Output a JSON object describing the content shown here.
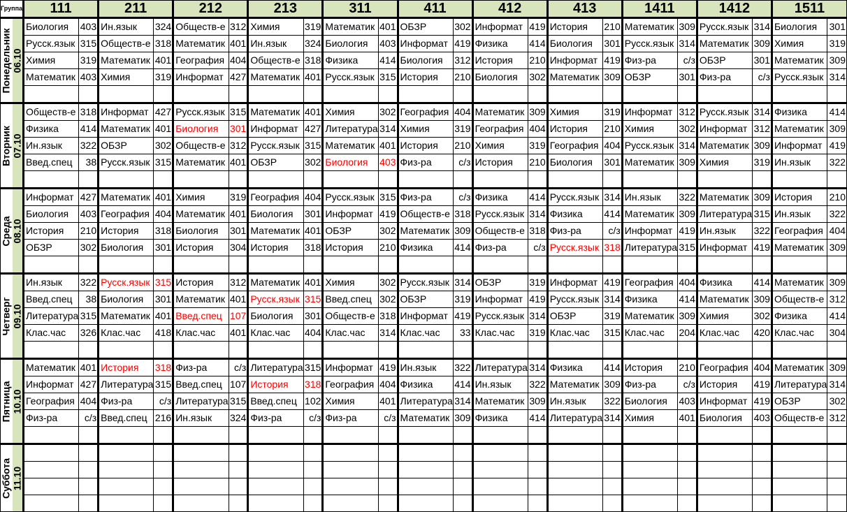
{
  "header": {
    "corner_label": "Группа",
    "groups": [
      "111",
      "211",
      "212",
      "213",
      "311",
      "411",
      "412",
      "413",
      "1411",
      "1412",
      "1511"
    ]
  },
  "colors": {
    "header_bg": "#d8e4bc",
    "highlight_text": "#ff0000"
  },
  "days": [
    {
      "name": "Понедельник",
      "date": "06.10",
      "rows": [
        [
          [
            "Биология",
            "403"
          ],
          [
            "Ин.язык",
            "324"
          ],
          [
            "Обществ-е",
            "312"
          ],
          [
            "Химия",
            "319"
          ],
          [
            "Математик",
            "401"
          ],
          [
            "ОБЗР",
            "302"
          ],
          [
            "Информат",
            "419"
          ],
          [
            "История",
            "210"
          ],
          [
            "Математик",
            "309"
          ],
          [
            "Русск.язык",
            "314"
          ],
          [
            "Биология",
            "301"
          ]
        ],
        [
          [
            "Русск.язык",
            "315"
          ],
          [
            "Обществ-е",
            "318"
          ],
          [
            "Математик",
            "401"
          ],
          [
            "Ин.язык",
            "324"
          ],
          [
            "Биология",
            "403"
          ],
          [
            "Информат",
            "419"
          ],
          [
            "Физика",
            "414"
          ],
          [
            "Биология",
            "301"
          ],
          [
            "Русск.язык",
            "314"
          ],
          [
            "Математик",
            "309"
          ],
          [
            "Химия",
            "319"
          ]
        ],
        [
          [
            "Химия",
            "319"
          ],
          [
            "Математик",
            "401"
          ],
          [
            "География",
            "404"
          ],
          [
            "Обществ-е",
            "318"
          ],
          [
            "Физика",
            "414"
          ],
          [
            "Биология",
            "312"
          ],
          [
            "История",
            "210"
          ],
          [
            "Информат",
            "419"
          ],
          [
            "Физ-ра",
            "с/з"
          ],
          [
            "ОБЗР",
            "301"
          ],
          [
            "Математик",
            "309"
          ]
        ],
        [
          [
            "Математик",
            "403"
          ],
          [
            "Химия",
            "319"
          ],
          [
            "Информат",
            "427"
          ],
          [
            "Математик",
            "401"
          ],
          [
            "Русск.язык",
            "315"
          ],
          [
            "История",
            "210"
          ],
          [
            "Биология",
            "302"
          ],
          [
            "Математик",
            "309"
          ],
          [
            "ОБЗР",
            "301"
          ],
          [
            "Физ-ра",
            "с/з"
          ],
          [
            "Русск.язык",
            "314"
          ]
        ]
      ]
    },
    {
      "name": "Вторник",
      "date": "07.10",
      "rows": [
        [
          [
            "Обществ-е",
            "318"
          ],
          [
            "Информат",
            "427"
          ],
          [
            "Русск.язык",
            "315"
          ],
          [
            "Математик",
            "401"
          ],
          [
            "Химия",
            "302"
          ],
          [
            "География",
            "404"
          ],
          [
            "Математик",
            "309"
          ],
          [
            "Химия",
            "319"
          ],
          [
            "Информат",
            "312"
          ],
          [
            "Русск.язык",
            "314"
          ],
          [
            "Физика",
            "414"
          ]
        ],
        [
          [
            "Физика",
            "414"
          ],
          [
            "Математик",
            "401"
          ],
          [
            "Биология",
            "301",
            true
          ],
          [
            "Информат",
            "427"
          ],
          [
            "Литература",
            "314"
          ],
          [
            "Химия",
            "319"
          ],
          [
            "География",
            "404"
          ],
          [
            "История",
            "210"
          ],
          [
            "Химия",
            "302"
          ],
          [
            "Информат",
            "312"
          ],
          [
            "Математик",
            "309"
          ]
        ],
        [
          [
            "Ин.язык",
            "322"
          ],
          [
            "ОБЗР",
            "302"
          ],
          [
            "Обществ-е",
            "312"
          ],
          [
            "Русск.язык",
            "315"
          ],
          [
            "Математик",
            "401"
          ],
          [
            "История",
            "210"
          ],
          [
            "Химия",
            "319"
          ],
          [
            "География",
            "404"
          ],
          [
            "Русск.язык",
            "314"
          ],
          [
            "Математик",
            "309"
          ],
          [
            "Информат",
            "419"
          ]
        ],
        [
          [
            "Введ.спец",
            "38"
          ],
          [
            "Русск.язык",
            "315"
          ],
          [
            "Математик",
            "401"
          ],
          [
            "ОБЗР",
            "302"
          ],
          [
            "Биология",
            "403",
            true
          ],
          [
            "Физ-ра",
            "с/з"
          ],
          [
            "История",
            "210"
          ],
          [
            "Биология",
            "301"
          ],
          [
            "Математик",
            "309"
          ],
          [
            "Химия",
            "319"
          ],
          [
            "Ин.язык",
            "322"
          ]
        ]
      ]
    },
    {
      "name": "Среда",
      "date": "08.10",
      "rows": [
        [
          [
            "Информат",
            "427"
          ],
          [
            "Математик",
            "401"
          ],
          [
            "Химия",
            "319"
          ],
          [
            "География",
            "404"
          ],
          [
            "Русск.язык",
            "315"
          ],
          [
            "Физ-ра",
            "с/з"
          ],
          [
            "Физика",
            "414"
          ],
          [
            "Русск.язык",
            "314"
          ],
          [
            "Ин.язык",
            "322"
          ],
          [
            "Математик",
            "309"
          ],
          [
            "История",
            "210"
          ]
        ],
        [
          [
            "Биология",
            "403"
          ],
          [
            "География",
            "404"
          ],
          [
            "Математик",
            "401"
          ],
          [
            "Биология",
            "301"
          ],
          [
            "Информат",
            "419"
          ],
          [
            "Обществ-е",
            "318"
          ],
          [
            "Русск.язык",
            "314"
          ],
          [
            "Физика",
            "414"
          ],
          [
            "Математик",
            "309"
          ],
          [
            "Литература",
            "315"
          ],
          [
            "Ин.язык",
            "322"
          ]
        ],
        [
          [
            "История",
            "210"
          ],
          [
            "История",
            "318"
          ],
          [
            "Биология",
            "301"
          ],
          [
            "Математик",
            "401"
          ],
          [
            "ОБЗР",
            "302"
          ],
          [
            "Математик",
            "309"
          ],
          [
            "Обществ-е",
            "318"
          ],
          [
            "Физ-ра",
            "с/з"
          ],
          [
            "Информат",
            "419"
          ],
          [
            "Ин.язык",
            "322"
          ],
          [
            "География",
            "404"
          ]
        ],
        [
          [
            "ОБЗР",
            "302"
          ],
          [
            "Биология",
            "301"
          ],
          [
            "История",
            "304"
          ],
          [
            "История",
            "318"
          ],
          [
            "История",
            "210"
          ],
          [
            "Физика",
            "414"
          ],
          [
            "Физ-ра",
            "с/з"
          ],
          [
            "Русск.язык",
            "318",
            true
          ],
          [
            "Литература",
            "315"
          ],
          [
            "Информат",
            "419"
          ],
          [
            "Математик",
            "309"
          ]
        ]
      ]
    },
    {
      "name": "Четверг",
      "date": "09.10",
      "rows": [
        [
          [
            "Ин.язык",
            "322"
          ],
          [
            "Русск.язык",
            "315",
            true
          ],
          [
            "История",
            "312"
          ],
          [
            "Математик",
            "401"
          ],
          [
            "Химия",
            "302"
          ],
          [
            "Русск.язык",
            "314"
          ],
          [
            "ОБЗР",
            "319"
          ],
          [
            "Информат",
            "419"
          ],
          [
            "География",
            "404"
          ],
          [
            "Физика",
            "414"
          ],
          [
            "Математик",
            "309"
          ]
        ],
        [
          [
            "Введ.спец",
            "38"
          ],
          [
            "Биология",
            "301"
          ],
          [
            "Математик",
            "401"
          ],
          [
            "Русск.язык",
            "315",
            true
          ],
          [
            "Введ.спец",
            "302"
          ],
          [
            "ОБЗР",
            "319"
          ],
          [
            "Информат",
            "419"
          ],
          [
            "Русск.язык",
            "314"
          ],
          [
            "Физика",
            "414"
          ],
          [
            "Математик",
            "309"
          ],
          [
            "Обществ-е",
            "312"
          ]
        ],
        [
          [
            "Литература",
            "315"
          ],
          [
            "Математик",
            "401"
          ],
          [
            "Введ.спец",
            "107",
            true
          ],
          [
            "Биология",
            "301"
          ],
          [
            "Обществ-е",
            "318"
          ],
          [
            "Информат",
            "419"
          ],
          [
            "Русск.язык",
            "314"
          ],
          [
            "ОБЗР",
            "319"
          ],
          [
            "Математик",
            "309"
          ],
          [
            "Химия",
            "302"
          ],
          [
            "Физика",
            "414"
          ]
        ],
        [
          [
            "Клас.час",
            "326"
          ],
          [
            "Клас.час",
            "418"
          ],
          [
            "Клас.час",
            "401"
          ],
          [
            "Клас.час",
            "404"
          ],
          [
            "Клас.час",
            "314"
          ],
          [
            "Клас.час",
            "33"
          ],
          [
            "Клас.час",
            "319"
          ],
          [
            "Клас.час",
            "315"
          ],
          [
            "Клас.час",
            "204"
          ],
          [
            "Клас.час",
            "420"
          ],
          [
            "Клас.час",
            "304"
          ]
        ]
      ]
    },
    {
      "name": "Пятница",
      "date": "10.10",
      "rows": [
        [
          [
            "Математик",
            "401"
          ],
          [
            "История",
            "318",
            true
          ],
          [
            "Физ-ра",
            "с/з"
          ],
          [
            "Литература",
            "315"
          ],
          [
            "Информат",
            "419"
          ],
          [
            "Ин.язык",
            "322"
          ],
          [
            "Литература",
            "314"
          ],
          [
            "Физика",
            "414"
          ],
          [
            "История",
            "210"
          ],
          [
            "География",
            "404"
          ],
          [
            "Математик",
            "309"
          ]
        ],
        [
          [
            "Информат",
            "427"
          ],
          [
            "Литература",
            "315"
          ],
          [
            "Введ.спец",
            "107"
          ],
          [
            "История",
            "318",
            true
          ],
          [
            "География",
            "404"
          ],
          [
            "Физика",
            "414"
          ],
          [
            "Ин.язык",
            "322"
          ],
          [
            "Математик",
            "309"
          ],
          [
            "Физ-ра",
            "с/з"
          ],
          [
            "История",
            "419"
          ],
          [
            "Литература",
            "314"
          ]
        ],
        [
          [
            "География",
            "404"
          ],
          [
            "Физ-ра",
            "с/з"
          ],
          [
            "Литература",
            "315"
          ],
          [
            "Введ.спец",
            "102"
          ],
          [
            "Химия",
            "401"
          ],
          [
            "Литература",
            "314"
          ],
          [
            "Математик",
            "309"
          ],
          [
            "Ин.язык",
            "322"
          ],
          [
            "Биология",
            "403"
          ],
          [
            "Информат",
            "419"
          ],
          [
            "ОБЗР",
            "302"
          ]
        ],
        [
          [
            "Физ-ра",
            "с/з"
          ],
          [
            "Введ.спец",
            "216"
          ],
          [
            "Ин.язык",
            "324"
          ],
          [
            "Физ-ра",
            "с/з"
          ],
          [
            "Физ-ра",
            "с/з"
          ],
          [
            "Математик",
            "309"
          ],
          [
            "Физика",
            "414"
          ],
          [
            "Литература",
            "314"
          ],
          [
            "Химия",
            "401"
          ],
          [
            "Биология",
            "403"
          ],
          [
            "Обществ-е",
            "312"
          ]
        ]
      ]
    },
    {
      "name": "Суббота",
      "date": "11.10",
      "rows": []
    }
  ]
}
